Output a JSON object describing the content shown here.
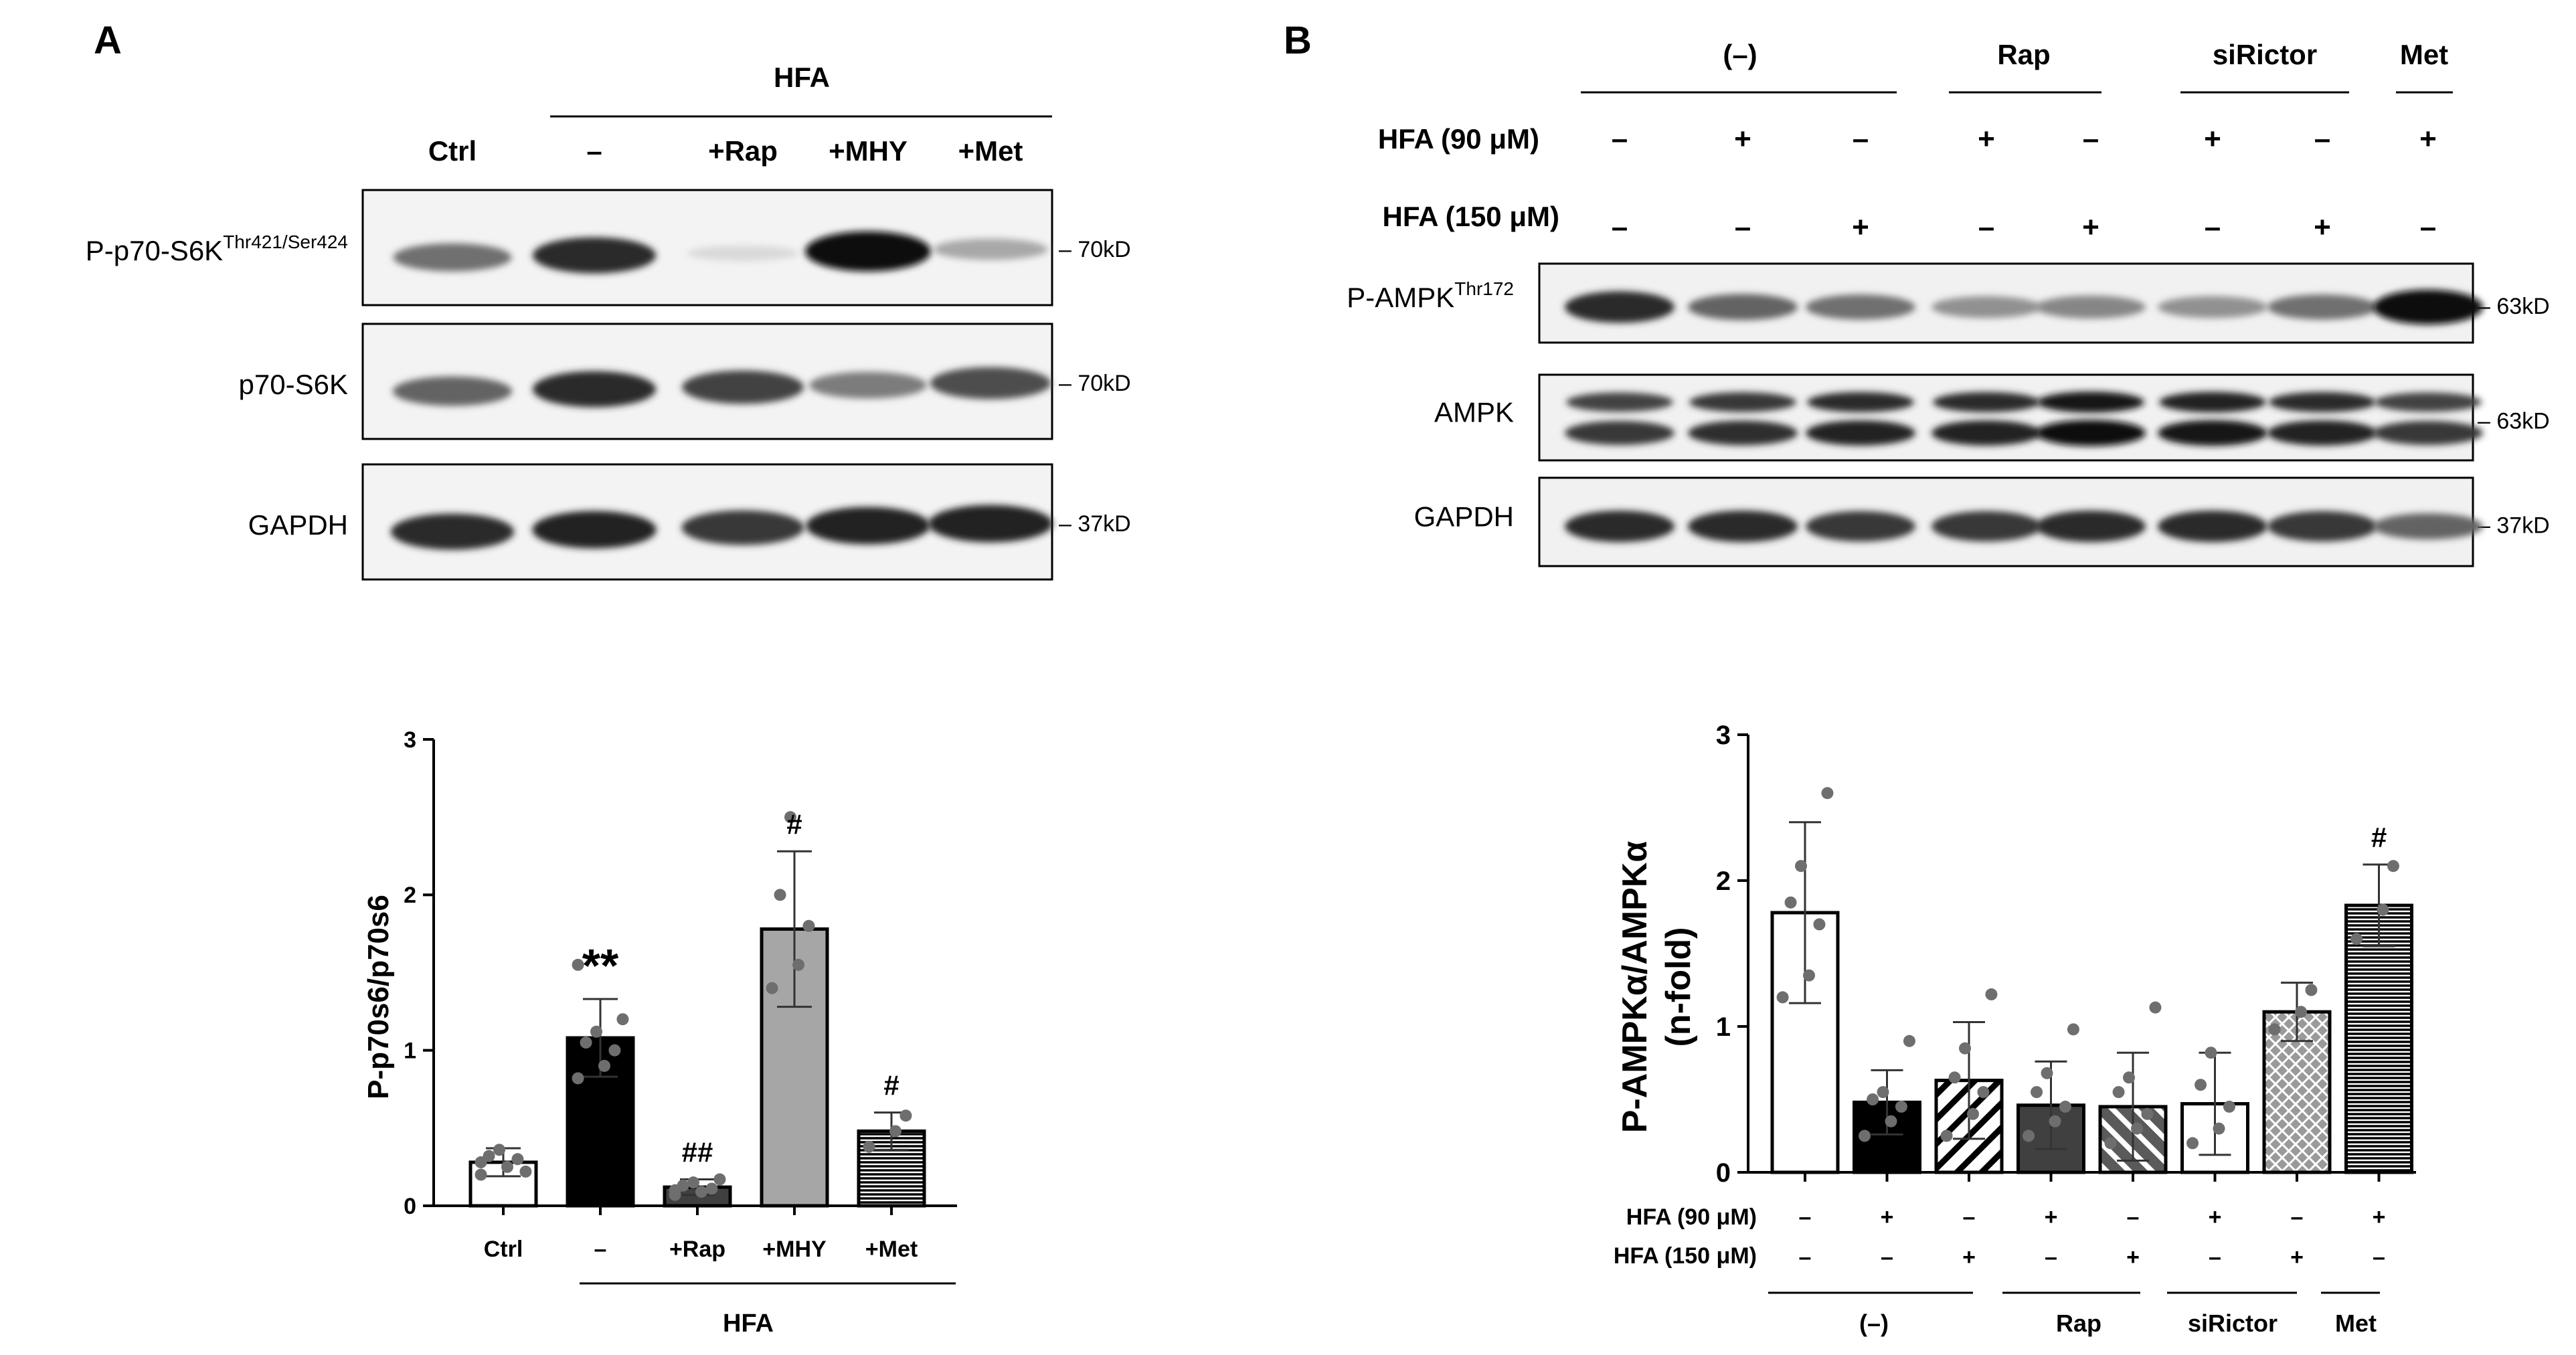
{
  "panelA": {
    "letter": "A",
    "header": "HFA",
    "lanes": [
      "Ctrl",
      "–",
      "+Rap",
      "+MHY",
      "+Met"
    ],
    "blots": [
      {
        "label_main": "P-p70-S6K",
        "label_sup": "Thr421/Ser424",
        "marker": "70kD",
        "intensity": [
          0.55,
          0.85,
          0.08,
          1.0,
          0.3
        ]
      },
      {
        "label_main": "p70-S6K",
        "label_sup": "",
        "marker": "70kD",
        "intensity": [
          0.6,
          0.85,
          0.75,
          0.5,
          0.7
        ]
      },
      {
        "label_main": "GAPDH",
        "label_sup": "",
        "marker": "37kD",
        "intensity": [
          0.85,
          0.9,
          0.8,
          0.9,
          0.9
        ]
      }
    ]
  },
  "panelB": {
    "letter": "B",
    "groups": [
      "(–)",
      "Rap",
      "siRictor",
      "Met"
    ],
    "row1_label": "HFA (90 μM)",
    "row2_label": "HFA (150 μM)",
    "row1": [
      "–",
      "+",
      "–",
      "+",
      "–",
      "+",
      "–",
      "+"
    ],
    "row2": [
      "–",
      "–",
      "+",
      "–",
      "+",
      "–",
      "+",
      "–"
    ],
    "blots": [
      {
        "label_main": "P-AMPK",
        "label_sup": "Thr172",
        "marker": "63kD",
        "intensity": [
          0.85,
          0.6,
          0.55,
          0.4,
          0.45,
          0.4,
          0.55,
          1.0
        ]
      },
      {
        "label_main": "AMPK",
        "label_sup": "",
        "marker": "63kD",
        "intensity": [
          0.75,
          0.8,
          0.85,
          0.85,
          0.95,
          0.9,
          0.85,
          0.75
        ]
      },
      {
        "label_main": "GAPDH",
        "label_sup": "",
        "marker": "37kD",
        "intensity": [
          0.85,
          0.85,
          0.8,
          0.8,
          0.85,
          0.85,
          0.8,
          0.6
        ]
      }
    ]
  },
  "chart_data": [
    {
      "type": "bar",
      "ylabel": "P-p70s6/p70s6",
      "ylim": [
        0,
        3
      ],
      "yticks": [
        0,
        1,
        2,
        3
      ],
      "categories": [
        "Ctrl",
        "–",
        "+Rap",
        "+MHY",
        "+Met"
      ],
      "group_label": "HFA",
      "values": [
        0.28,
        1.08,
        0.12,
        1.78,
        0.48
      ],
      "errors": [
        0.09,
        0.25,
        0.05,
        0.5,
        0.12
      ],
      "significance": [
        "",
        "**",
        "##",
        "#",
        "#"
      ],
      "fills": [
        "#ffffff",
        "#000000",
        "#404040",
        "#a6a6a6",
        "hlines"
      ],
      "points": [
        [
          0.2,
          0.25,
          0.3,
          0.32,
          0.36,
          0.22,
          0.28
        ],
        [
          0.82,
          0.9,
          1.0,
          1.05,
          1.12,
          1.2,
          1.55
        ],
        [
          0.07,
          0.09,
          0.11,
          0.13,
          0.15,
          0.17,
          0.1
        ],
        [
          1.4,
          1.55,
          1.8,
          2.0,
          2.5
        ],
        [
          0.38,
          0.48,
          0.58
        ]
      ]
    },
    {
      "type": "bar",
      "ylabel": "P-AMPKα/AMPKα (n-fold)",
      "ylabel_line1": "P-AMPKα/AMPKα",
      "ylabel_line2": "(n-fold)",
      "ylim": [
        0,
        3
      ],
      "yticks": [
        0,
        1,
        2,
        3
      ],
      "row1_label": "HFA (90 μM)",
      "row2_label": "HFA (150 μM)",
      "row1": [
        "–",
        "+",
        "–",
        "+",
        "–",
        "+",
        "–",
        "+"
      ],
      "row2": [
        "–",
        "–",
        "+",
        "–",
        "+",
        "–",
        "+",
        "–"
      ],
      "groups": [
        "(–)",
        "Rap",
        "siRictor",
        "Met"
      ],
      "values": [
        1.78,
        0.48,
        0.63,
        0.46,
        0.45,
        0.47,
        1.1,
        1.83
      ],
      "errors": [
        0.62,
        0.22,
        0.4,
        0.3,
        0.37,
        0.35,
        0.2,
        0.28
      ],
      "significance": [
        "",
        "",
        "",
        "",
        "",
        "",
        "",
        "#"
      ],
      "fills": [
        "#ffffff",
        "#000000",
        "diag",
        "#404040",
        "diagw",
        "#ffffff",
        "cross",
        "hlines"
      ],
      "points": [
        [
          1.2,
          1.35,
          1.7,
          1.85,
          2.1,
          2.6
        ],
        [
          0.25,
          0.35,
          0.45,
          0.5,
          0.55,
          0.9
        ],
        [
          0.25,
          0.4,
          0.55,
          0.65,
          0.85,
          1.22
        ],
        [
          0.25,
          0.35,
          0.45,
          0.55,
          0.68,
          0.98
        ],
        [
          0.2,
          0.3,
          0.4,
          0.55,
          0.65,
          1.13
        ],
        [
          0.2,
          0.3,
          0.45,
          0.6,
          0.82
        ],
        [
          0.98,
          1.1,
          1.25
        ],
        [
          1.6,
          1.8,
          2.1
        ]
      ]
    }
  ]
}
